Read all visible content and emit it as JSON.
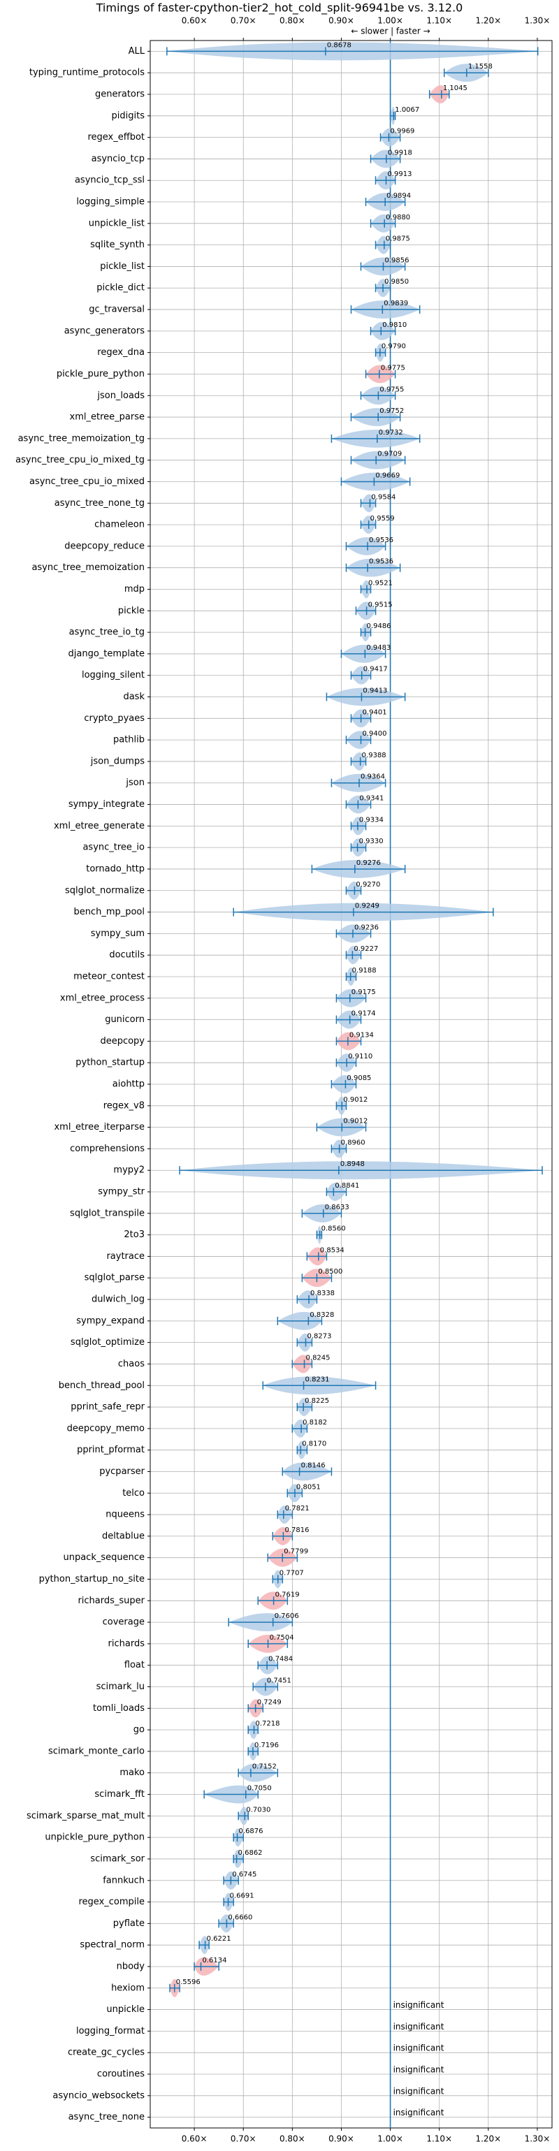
{
  "chart_data": {
    "type": "violin",
    "title": "Timings of faster-cpython-tier2_hot_cold_split-96941be vs. 3.12.0",
    "annotation": "← slower | faster →",
    "xlim": [
      0.51,
      1.33
    ],
    "xticks": [
      {
        "value": 0.6,
        "label": "0.60×"
      },
      {
        "value": 0.7,
        "label": "0.70×"
      },
      {
        "value": 0.8,
        "label": "0.80×"
      },
      {
        "value": 0.9,
        "label": "0.90×"
      },
      {
        "value": 1.0,
        "label": "1.00×"
      },
      {
        "value": 1.1,
        "label": "1.10×"
      },
      {
        "value": 1.2,
        "label": "1.20×"
      },
      {
        "value": 1.3,
        "label": "1.30×"
      }
    ],
    "baseline": 1,
    "grid": true,
    "line_color": "#1f77b4",
    "violin_color": "#b3cde6",
    "highlight_color": "#f5b3b5",
    "rows": [
      {
        "name": "ALL",
        "value": 0.8678,
        "label": "0.8678",
        "range": [
          0.544,
          1.301
        ]
      },
      {
        "name": "typing_runtime_protocols",
        "value": 1.1558,
        "label": "1.1558",
        "range": [
          1.11,
          1.2
        ]
      },
      {
        "name": "generators",
        "value": 1.1045,
        "label": "1.1045",
        "range": [
          1.08,
          1.12
        ],
        "highlight": true
      },
      {
        "name": "pidigits",
        "value": 1.0067,
        "label": "1.0067",
        "range": [
          1.0,
          1.01
        ]
      },
      {
        "name": "regex_effbot",
        "value": 0.9969,
        "label": "0.9969",
        "range": [
          0.98,
          1.02
        ]
      },
      {
        "name": "asyncio_tcp",
        "value": 0.9918,
        "label": "0.9918",
        "range": [
          0.96,
          1.02
        ]
      },
      {
        "name": "asyncio_tcp_ssl",
        "value": 0.9913,
        "label": "0.9913",
        "range": [
          0.97,
          1.01
        ]
      },
      {
        "name": "logging_simple",
        "value": 0.9894,
        "label": "0.9894",
        "range": [
          0.95,
          1.03
        ]
      },
      {
        "name": "unpickle_list",
        "value": 0.988,
        "label": "0.9880",
        "range": [
          0.96,
          1.01
        ]
      },
      {
        "name": "sqlite_synth",
        "value": 0.9875,
        "label": "0.9875",
        "range": [
          0.97,
          1.0
        ]
      },
      {
        "name": "pickle_list",
        "value": 0.9856,
        "label": "0.9856",
        "range": [
          0.94,
          1.03
        ]
      },
      {
        "name": "pickle_dict",
        "value": 0.985,
        "label": "0.9850",
        "range": [
          0.97,
          1.0
        ]
      },
      {
        "name": "gc_traversal",
        "value": 0.9839,
        "label": "0.9839",
        "range": [
          0.92,
          1.06
        ]
      },
      {
        "name": "async_generators",
        "value": 0.981,
        "label": "0.9810",
        "range": [
          0.96,
          1.01
        ]
      },
      {
        "name": "regex_dna",
        "value": 0.979,
        "label": "0.9790",
        "range": [
          0.97,
          0.99
        ]
      },
      {
        "name": "pickle_pure_python",
        "value": 0.9775,
        "label": "0.9775",
        "range": [
          0.95,
          1.01
        ],
        "highlight": true
      },
      {
        "name": "json_loads",
        "value": 0.9755,
        "label": "0.9755",
        "range": [
          0.94,
          1.01
        ]
      },
      {
        "name": "xml_etree_parse",
        "value": 0.9752,
        "label": "0.9752",
        "range": [
          0.92,
          1.02
        ]
      },
      {
        "name": "async_tree_memoization_tg",
        "value": 0.9732,
        "label": "0.9732",
        "range": [
          0.88,
          1.06
        ]
      },
      {
        "name": "async_tree_cpu_io_mixed_tg",
        "value": 0.9709,
        "label": "0.9709",
        "range": [
          0.92,
          1.03
        ]
      },
      {
        "name": "async_tree_cpu_io_mixed",
        "value": 0.9669,
        "label": "0.9669",
        "range": [
          0.9,
          1.04
        ]
      },
      {
        "name": "async_tree_none_tg",
        "value": 0.9584,
        "label": "0.9584",
        "range": [
          0.94,
          0.97
        ]
      },
      {
        "name": "chameleon",
        "value": 0.9559,
        "label": "0.9559",
        "range": [
          0.94,
          0.97
        ]
      },
      {
        "name": "deepcopy_reduce",
        "value": 0.9536,
        "label": "0.9536",
        "range": [
          0.91,
          0.99
        ]
      },
      {
        "name": "async_tree_memoization",
        "value": 0.9536,
        "label": "0.9536",
        "range": [
          0.91,
          1.02
        ]
      },
      {
        "name": "mdp",
        "value": 0.9521,
        "label": "0.9521",
        "range": [
          0.94,
          0.96
        ]
      },
      {
        "name": "pickle",
        "value": 0.9515,
        "label": "0.9515",
        "range": [
          0.93,
          0.97
        ]
      },
      {
        "name": "async_tree_io_tg",
        "value": 0.9486,
        "label": "0.9486",
        "range": [
          0.94,
          0.96
        ]
      },
      {
        "name": "django_template",
        "value": 0.9483,
        "label": "0.9483",
        "range": [
          0.9,
          0.99
        ]
      },
      {
        "name": "logging_silent",
        "value": 0.9417,
        "label": "0.9417",
        "range": [
          0.92,
          0.96
        ]
      },
      {
        "name": "dask",
        "value": 0.9413,
        "label": "0.9413",
        "range": [
          0.87,
          1.03
        ]
      },
      {
        "name": "crypto_pyaes",
        "value": 0.9401,
        "label": "0.9401",
        "range": [
          0.92,
          0.96
        ]
      },
      {
        "name": "pathlib",
        "value": 0.94,
        "label": "0.9400",
        "range": [
          0.91,
          0.96
        ]
      },
      {
        "name": "json_dumps",
        "value": 0.9388,
        "label": "0.9388",
        "range": [
          0.92,
          0.95
        ]
      },
      {
        "name": "json",
        "value": 0.9364,
        "label": "0.9364",
        "range": [
          0.88,
          0.99
        ]
      },
      {
        "name": "sympy_integrate",
        "value": 0.9341,
        "label": "0.9341",
        "range": [
          0.91,
          0.96
        ]
      },
      {
        "name": "xml_etree_generate",
        "value": 0.9334,
        "label": "0.9334",
        "range": [
          0.92,
          0.95
        ]
      },
      {
        "name": "async_tree_io",
        "value": 0.933,
        "label": "0.9330",
        "range": [
          0.92,
          0.95
        ]
      },
      {
        "name": "tornado_http",
        "value": 0.9276,
        "label": "0.9276",
        "range": [
          0.84,
          1.03
        ]
      },
      {
        "name": "sqlglot_normalize",
        "value": 0.927,
        "label": "0.9270",
        "range": [
          0.91,
          0.94
        ]
      },
      {
        "name": "bench_mp_pool",
        "value": 0.9249,
        "label": "0.9249",
        "range": [
          0.68,
          1.21
        ]
      },
      {
        "name": "sympy_sum",
        "value": 0.9236,
        "label": "0.9236",
        "range": [
          0.89,
          0.96
        ]
      },
      {
        "name": "docutils",
        "value": 0.9227,
        "label": "0.9227",
        "range": [
          0.91,
          0.94
        ]
      },
      {
        "name": "meteor_contest",
        "value": 0.9188,
        "label": "0.9188",
        "range": [
          0.91,
          0.93
        ]
      },
      {
        "name": "xml_etree_process",
        "value": 0.9175,
        "label": "0.9175",
        "range": [
          0.89,
          0.95
        ]
      },
      {
        "name": "gunicorn",
        "value": 0.9174,
        "label": "0.9174",
        "range": [
          0.89,
          0.94
        ]
      },
      {
        "name": "deepcopy",
        "value": 0.9134,
        "label": "0.9134",
        "range": [
          0.89,
          0.94
        ],
        "highlight": true
      },
      {
        "name": "python_startup",
        "value": 0.911,
        "label": "0.9110",
        "range": [
          0.89,
          0.93
        ]
      },
      {
        "name": "aiohttp",
        "value": 0.9085,
        "label": "0.9085",
        "range": [
          0.88,
          0.93
        ]
      },
      {
        "name": "regex_v8",
        "value": 0.9012,
        "label": "0.9012",
        "range": [
          0.89,
          0.91
        ]
      },
      {
        "name": "xml_etree_iterparse",
        "value": 0.9012,
        "label": "0.9012",
        "range": [
          0.85,
          0.95
        ]
      },
      {
        "name": "comprehensions",
        "value": 0.896,
        "label": "0.8960",
        "range": [
          0.88,
          0.91
        ]
      },
      {
        "name": "mypy2",
        "value": 0.8948,
        "label": "0.8948",
        "range": [
          0.57,
          1.31
        ]
      },
      {
        "name": "sympy_str",
        "value": 0.8841,
        "label": "0.8841",
        "range": [
          0.87,
          0.91
        ]
      },
      {
        "name": "sqlglot_transpile",
        "value": 0.8633,
        "label": "0.8633",
        "range": [
          0.82,
          0.9
        ]
      },
      {
        "name": "2to3",
        "value": 0.856,
        "label": "0.8560",
        "range": [
          0.85,
          0.86
        ]
      },
      {
        "name": "raytrace",
        "value": 0.8534,
        "label": "0.8534",
        "range": [
          0.83,
          0.87
        ],
        "highlight": true
      },
      {
        "name": "sqlglot_parse",
        "value": 0.85,
        "label": "0.8500",
        "range": [
          0.82,
          0.88
        ],
        "highlight": true
      },
      {
        "name": "dulwich_log",
        "value": 0.8338,
        "label": "0.8338",
        "range": [
          0.81,
          0.85
        ]
      },
      {
        "name": "sympy_expand",
        "value": 0.8328,
        "label": "0.8328",
        "range": [
          0.77,
          0.86
        ]
      },
      {
        "name": "sqlglot_optimize",
        "value": 0.8273,
        "label": "0.8273",
        "range": [
          0.81,
          0.84
        ]
      },
      {
        "name": "chaos",
        "value": 0.8245,
        "label": "0.8245",
        "range": [
          0.8,
          0.84
        ],
        "highlight": true
      },
      {
        "name": "bench_thread_pool",
        "value": 0.8231,
        "label": "0.8231",
        "range": [
          0.74,
          0.97
        ]
      },
      {
        "name": "pprint_safe_repr",
        "value": 0.8225,
        "label": "0.8225",
        "range": [
          0.81,
          0.84
        ]
      },
      {
        "name": "deepcopy_memo",
        "value": 0.8182,
        "label": "0.8182",
        "range": [
          0.8,
          0.83
        ]
      },
      {
        "name": "pprint_pformat",
        "value": 0.817,
        "label": "0.8170",
        "range": [
          0.81,
          0.83
        ]
      },
      {
        "name": "pycparser",
        "value": 0.8146,
        "label": "0.8146",
        "range": [
          0.78,
          0.88
        ]
      },
      {
        "name": "telco",
        "value": 0.8051,
        "label": "0.8051",
        "range": [
          0.79,
          0.82
        ]
      },
      {
        "name": "nqueens",
        "value": 0.7821,
        "label": "0.7821",
        "range": [
          0.77,
          0.8
        ]
      },
      {
        "name": "deltablue",
        "value": 0.7816,
        "label": "0.7816",
        "range": [
          0.76,
          0.8
        ],
        "highlight": true
      },
      {
        "name": "unpack_sequence",
        "value": 0.7799,
        "label": "0.7799",
        "range": [
          0.75,
          0.81
        ],
        "highlight": true
      },
      {
        "name": "python_startup_no_site",
        "value": 0.7707,
        "label": "0.7707",
        "range": [
          0.76,
          0.78
        ]
      },
      {
        "name": "richards_super",
        "value": 0.7619,
        "label": "0.7619",
        "range": [
          0.73,
          0.79
        ],
        "highlight": true
      },
      {
        "name": "coverage",
        "value": 0.7606,
        "label": "0.7606",
        "range": [
          0.67,
          0.8
        ]
      },
      {
        "name": "richards",
        "value": 0.7504,
        "label": "0.7504",
        "range": [
          0.71,
          0.79
        ],
        "highlight": true
      },
      {
        "name": "float",
        "value": 0.7484,
        "label": "0.7484",
        "range": [
          0.73,
          0.77
        ]
      },
      {
        "name": "scimark_lu",
        "value": 0.7451,
        "label": "0.7451",
        "range": [
          0.72,
          0.77
        ]
      },
      {
        "name": "tomli_loads",
        "value": 0.7249,
        "label": "0.7249",
        "range": [
          0.71,
          0.74
        ],
        "highlight": true
      },
      {
        "name": "go",
        "value": 0.7218,
        "label": "0.7218",
        "range": [
          0.71,
          0.73
        ]
      },
      {
        "name": "scimark_monte_carlo",
        "value": 0.7196,
        "label": "0.7196",
        "range": [
          0.71,
          0.73
        ]
      },
      {
        "name": "mako",
        "value": 0.7152,
        "label": "0.7152",
        "range": [
          0.69,
          0.77
        ]
      },
      {
        "name": "scimark_fft",
        "value": 0.705,
        "label": "0.7050",
        "range": [
          0.62,
          0.73
        ]
      },
      {
        "name": "scimark_sparse_mat_mult",
        "value": 0.703,
        "label": "0.7030",
        "range": [
          0.69,
          0.71
        ]
      },
      {
        "name": "unpickle_pure_python",
        "value": 0.6876,
        "label": "0.6876",
        "range": [
          0.68,
          0.7
        ]
      },
      {
        "name": "scimark_sor",
        "value": 0.6862,
        "label": "0.6862",
        "range": [
          0.68,
          0.7
        ]
      },
      {
        "name": "fannkuch",
        "value": 0.6745,
        "label": "0.6745",
        "range": [
          0.66,
          0.69
        ]
      },
      {
        "name": "regex_compile",
        "value": 0.6691,
        "label": "0.6691",
        "range": [
          0.66,
          0.68
        ]
      },
      {
        "name": "pyflate",
        "value": 0.666,
        "label": "0.6660",
        "range": [
          0.65,
          0.68
        ]
      },
      {
        "name": "spectral_norm",
        "value": 0.6221,
        "label": "0.6221",
        "range": [
          0.61,
          0.63
        ]
      },
      {
        "name": "nbody",
        "value": 0.6134,
        "label": "0.6134",
        "range": [
          0.6,
          0.65
        ],
        "highlight": true
      },
      {
        "name": "hexiom",
        "value": 0.5596,
        "label": "0.5596",
        "range": [
          0.55,
          0.57
        ],
        "highlight": true
      },
      {
        "name": "unpickle",
        "value": null,
        "label": "insignificant",
        "range": null
      },
      {
        "name": "logging_format",
        "value": null,
        "label": "insignificant",
        "range": null
      },
      {
        "name": "create_gc_cycles",
        "value": null,
        "label": "insignificant",
        "range": null
      },
      {
        "name": "coroutines",
        "value": null,
        "label": "insignificant",
        "range": null
      },
      {
        "name": "asyncio_websockets",
        "value": null,
        "label": "insignificant",
        "range": null
      },
      {
        "name": "async_tree_none",
        "value": null,
        "label": "insignificant",
        "range": null
      }
    ]
  }
}
